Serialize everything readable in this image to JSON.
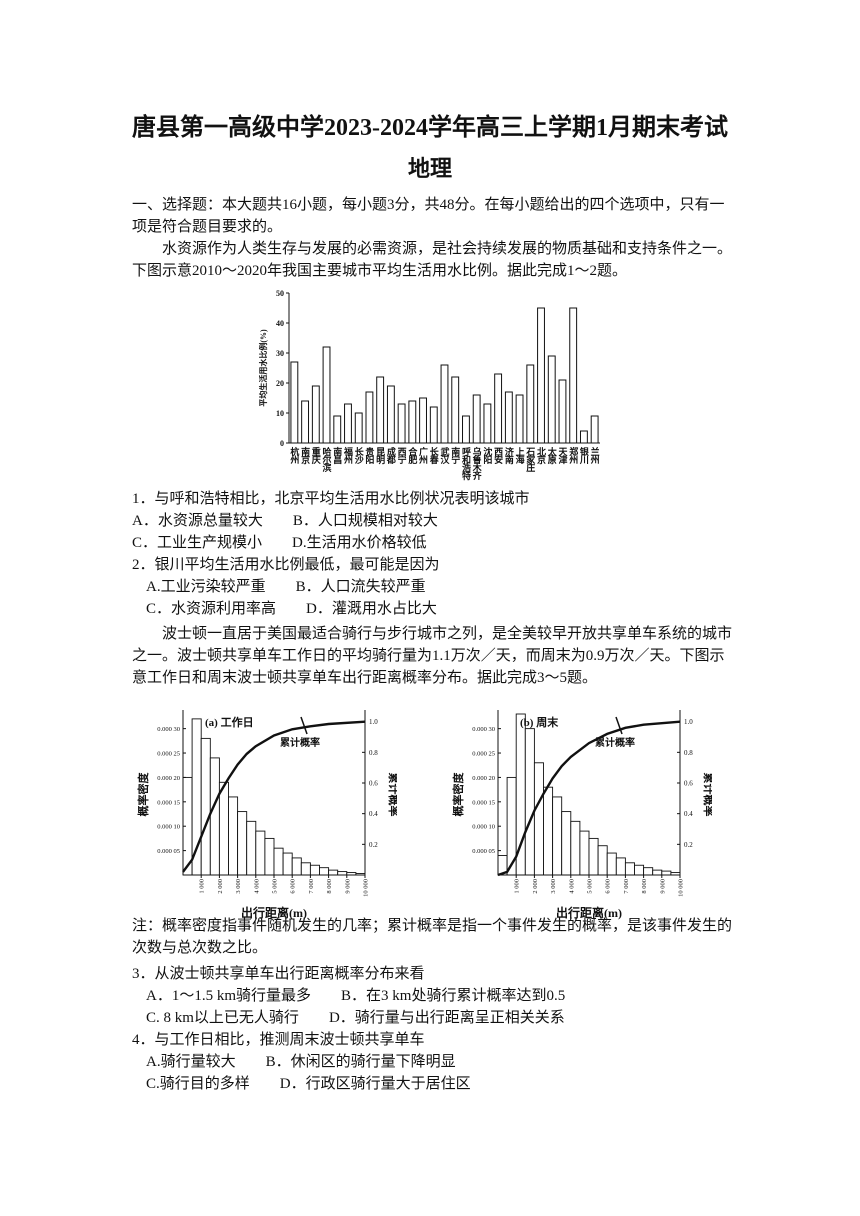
{
  "header": {
    "title": "唐县第一高级中学2023-2024学年高三上学期1月期末考试",
    "subtitle": "地理"
  },
  "section": "一、选择题：本大题共16小题，每小题3分，共48分。在每小题给出的四个选项中，只有一项是符合题目要求的。",
  "passages": [
    "水资源作为人类生存与发展的必需资源，是社会持续发展的物质基础和支持条件之一。下图示意2010～2020年我国主要城市平均生活用水比例。据此完成1～2题。",
    "波士顿一直居于美国最适合骑行与步行城市之列，是全美较早开放共享单车系统的城市之一。波士顿共享单车工作日的平均骑行量为1.1万次／天，而周末为0.9万次／天。下图示意工作日和周末波士顿共享单车出行距离概率分布。据此完成3～5题。"
  ],
  "note": "注：概率密度指事件随机发生的几率；累计概率是指一个事件发生的概率，是该事件发生的次数与总次数之比。",
  "questions": [
    {
      "stem": "1．与呼和浩特相比，北京平均生活用水比例状况表明该城市",
      "options": [
        "A．水资源总量较大",
        "B．人口规模相对较大",
        "C．工业生产规模小",
        "D.生活用水价格较低"
      ]
    },
    {
      "stem": "2．银川平均生活用水比例最低，最可能是因为",
      "options": [
        "A.工业污染较严重",
        "B．人口流失较严重",
        "C．水资源利用率高",
        "D．灌溉用水占比大"
      ]
    },
    {
      "stem": "3．从波士顿共享单车出行距离概率分布来看",
      "options": [
        "A．1～1.5 km骑行量最多",
        "B．在3 km处骑行累计概率达到0.5",
        "C. 8 km以上已无人骑行",
        "D．骑行量与出行距离呈正相关关系"
      ]
    },
    {
      "stem": "4．与工作日相比，推测周末波士顿共享单车",
      "options": [
        "A.骑行量较大",
        "B．休闲区的骑行量下降明显",
        "C.骑行目的多样",
        "D．行政区骑行量大于居住区"
      ]
    }
  ],
  "chart_data": [
    {
      "type": "bar",
      "ylabel": "平均生活用水比例(%)",
      "categories": [
        "杭州",
        "南京",
        "重庆",
        "哈尔滨",
        "南昌",
        "福州",
        "长沙",
        "贵阳",
        "昆明",
        "成都",
        "西宁",
        "合肥",
        "广州",
        "长春",
        "武汉",
        "南宁",
        "呼和浩特",
        "乌鲁木齐",
        "沈阳",
        "西安",
        "济南",
        "上海",
        "石家庄",
        "北京",
        "太原",
        "天津",
        "郑州",
        "银川",
        "兰州"
      ],
      "values": [
        27,
        14,
        19,
        32,
        9,
        13,
        10,
        17,
        22,
        19,
        13,
        14,
        15,
        12,
        26,
        22,
        9,
        16,
        13,
        23,
        17,
        16,
        26,
        45,
        29,
        21,
        45,
        4,
        9
      ],
      "ylim": [
        0,
        50
      ],
      "yticks": [
        0,
        10,
        20,
        30,
        40,
        50
      ]
    },
    {
      "type": "histogram",
      "panel": "(a) 工作日",
      "xlabel": "出行距离(m)",
      "ylabel": "概率密度",
      "y2label": "累计概率",
      "bins": [
        0,
        500,
        1000,
        1500,
        2000,
        2500,
        3000,
        3500,
        4000,
        4500,
        5000,
        5500,
        6000,
        6500,
        7000,
        7500,
        8000,
        8500,
        9000,
        9500,
        10000
      ],
      "values": [
        0.0002,
        0.00032,
        0.00028,
        0.00024,
        0.00019,
        0.00016,
        0.00013,
        0.00011,
        9e-05,
        7.5e-05,
        5.5e-05,
        4.5e-05,
        3.5e-05,
        2.5e-05,
        2e-05,
        1.5e-05,
        1e-05,
        7e-06,
        5e-06,
        3e-06
      ],
      "series": [
        {
          "name": "累计概率",
          "axis": "y2",
          "x": [
            0,
            500,
            1000,
            1500,
            2000,
            2500,
            3000,
            3500,
            4000,
            5000,
            6000,
            7000,
            8000,
            10000
          ],
          "values": [
            0.02,
            0.1,
            0.25,
            0.4,
            0.53,
            0.63,
            0.72,
            0.79,
            0.84,
            0.91,
            0.95,
            0.97,
            0.985,
            1
          ]
        }
      ],
      "xlim": [
        0,
        10000
      ],
      "xticks": [
        {
          "value": 1000,
          "label": "1 000"
        },
        {
          "value": 2000,
          "label": "2 000"
        },
        {
          "value": 3000,
          "label": "3 000"
        },
        {
          "value": 4000,
          "label": "4 000"
        },
        {
          "value": 5000,
          "label": "5 000"
        },
        {
          "value": 6000,
          "label": "6 000"
        },
        {
          "value": 7000,
          "label": "7 000"
        },
        {
          "value": 8000,
          "label": "8 000"
        },
        {
          "value": 9000,
          "label": "9 000"
        },
        {
          "value": 10000,
          "label": "10 000"
        }
      ],
      "ylim": [
        0,
        0.00033
      ],
      "yticks": [
        {
          "value": 5e-05,
          "label": "0.000 05"
        },
        {
          "value": 0.0001,
          "label": "0.000 10"
        },
        {
          "value": 0.00015,
          "label": "0.000 15"
        },
        {
          "value": 0.0002,
          "label": "0.000 20"
        },
        {
          "value": 0.00025,
          "label": "0.000 25"
        },
        {
          "value": 0.0003,
          "label": "0.000 30"
        }
      ],
      "y2lim": [
        0,
        1.05
      ],
      "y2ticks": [
        0.2,
        0.4,
        0.6,
        0.8,
        {
          "value": 1,
          "label": "1.0"
        }
      ]
    },
    {
      "type": "histogram",
      "panel": "(b) 周末",
      "xlabel": "出行距离(m)",
      "ylabel": "概率密度",
      "y2label": "累计概率",
      "bins": [
        0,
        500,
        1000,
        1500,
        2000,
        2500,
        3000,
        3500,
        4000,
        4500,
        5000,
        5500,
        6000,
        6500,
        7000,
        7500,
        8000,
        8500,
        9000,
        9500,
        10000
      ],
      "values": [
        4e-05,
        0.0002,
        0.00033,
        0.0003,
        0.00023,
        0.00018,
        0.00016,
        0.00013,
        0.00011,
        9e-05,
        7.5e-05,
        6e-05,
        4.5e-05,
        3.5e-05,
        2.5e-05,
        2e-05,
        1.5e-05,
        1e-05,
        8e-06,
        5e-06
      ],
      "series": [
        {
          "name": "累计概率",
          "axis": "y2",
          "x": [
            0,
            500,
            1000,
            1500,
            2000,
            2500,
            3000,
            3500,
            4000,
            5000,
            6000,
            7000,
            8000,
            10000
          ],
          "values": [
            0,
            0.02,
            0.12,
            0.28,
            0.42,
            0.53,
            0.63,
            0.71,
            0.77,
            0.86,
            0.92,
            0.96,
            0.98,
            1
          ]
        }
      ],
      "xlim": [
        0,
        10000
      ],
      "xticks": [
        {
          "value": 1000,
          "label": "1 000"
        },
        {
          "value": 2000,
          "label": "2 000"
        },
        {
          "value": 3000,
          "label": "3 000"
        },
        {
          "value": 4000,
          "label": "4 000"
        },
        {
          "value": 5000,
          "label": "5 000"
        },
        {
          "value": 6000,
          "label": "6 000"
        },
        {
          "value": 7000,
          "label": "7 000"
        },
        {
          "value": 8000,
          "label": "8 000"
        },
        {
          "value": 9000,
          "label": "9 000"
        },
        {
          "value": 10000,
          "label": "10 000"
        }
      ],
      "ylim": [
        0,
        0.00033
      ],
      "yticks": [
        {
          "value": 5e-05,
          "label": "0.000 05"
        },
        {
          "value": 0.0001,
          "label": "0.000 10"
        },
        {
          "value": 0.00015,
          "label": "0.000 15"
        },
        {
          "value": 0.0002,
          "label": "0.000 20"
        },
        {
          "value": 0.00025,
          "label": "0.000 25"
        },
        {
          "value": 0.0003,
          "label": "0.000 30"
        }
      ],
      "y2lim": [
        0,
        1.05
      ],
      "y2ticks": [
        0.2,
        0.4,
        0.6,
        0.8,
        {
          "value": 1,
          "label": "1.0"
        }
      ]
    }
  ]
}
